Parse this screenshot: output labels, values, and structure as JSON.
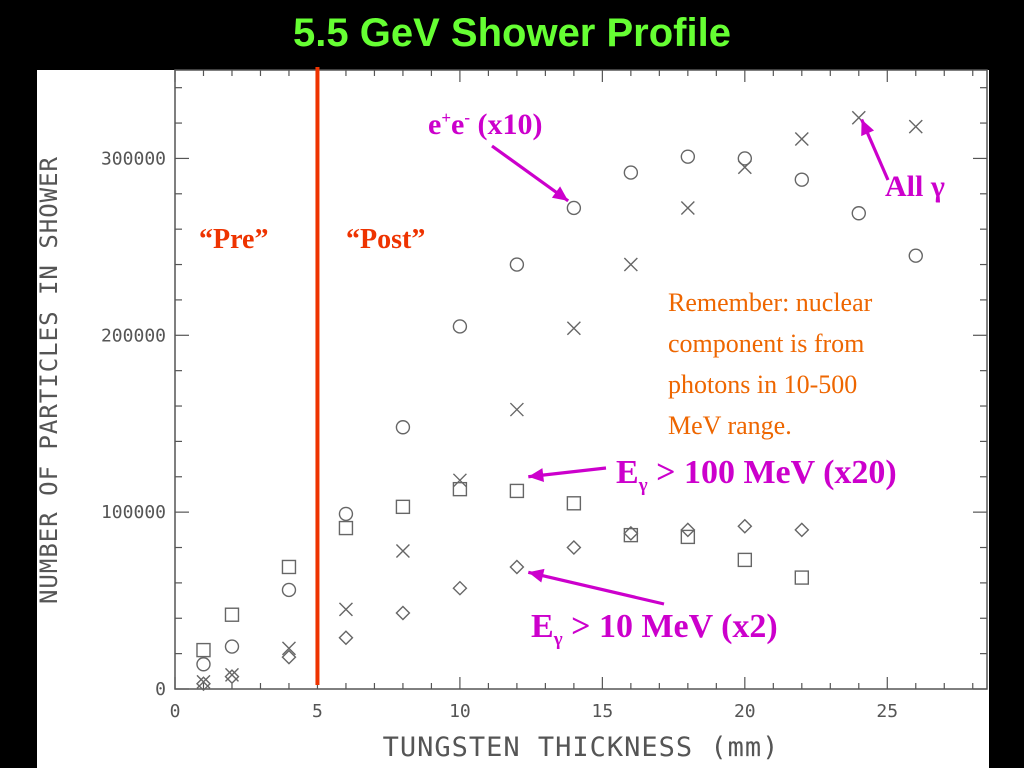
{
  "title": "5.5 GeV Shower Profile",
  "chart_data": {
    "type": "scatter",
    "xlabel": "TUNGSTEN THICKNESS (mm)",
    "ylabel": "NUMBER OF PARTICLES IN SHOWER",
    "xlim": [
      0,
      28.5
    ],
    "ylim": [
      0,
      350000
    ],
    "x_ticks": [
      0,
      5,
      10,
      15,
      20,
      25
    ],
    "y_ticks": [
      0,
      100000,
      200000,
      300000
    ],
    "x_tick_labels": [
      "0",
      "5",
      "10",
      "15",
      "20",
      "25"
    ],
    "y_tick_labels": [
      "0",
      "100000",
      "200000",
      "300000"
    ],
    "grid": false,
    "series": [
      {
        "marker": "circle",
        "label": "e⁺e⁻ (x10)",
        "color": "#666666",
        "x": [
          1,
          2,
          4,
          6,
          8,
          10,
          12,
          14,
          16,
          18,
          20,
          22,
          24,
          26
        ],
        "y": [
          14000,
          24000,
          56000,
          99000,
          148000,
          205000,
          240000,
          272000,
          292000,
          301000,
          300000,
          288000,
          269000,
          245000
        ]
      },
      {
        "marker": "x",
        "label": "All γ",
        "color": "#666666",
        "x": [
          1,
          2,
          4,
          6,
          8,
          10,
          12,
          14,
          16,
          18,
          20,
          22,
          24,
          26
        ],
        "y": [
          4000,
          8000,
          23000,
          45000,
          78000,
          118000,
          158000,
          204000,
          240000,
          272000,
          295000,
          311000,
          323000,
          318000
        ]
      },
      {
        "marker": "square",
        "label": "Eγ > 100 MeV (x20)",
        "color": "#666666",
        "x": [
          1,
          2,
          4,
          6,
          8,
          10,
          12,
          14,
          16,
          18,
          20,
          22
        ],
        "y": [
          22000,
          42000,
          69000,
          91000,
          103000,
          113000,
          112000,
          105000,
          87000,
          86000,
          73000,
          63000
        ]
      },
      {
        "marker": "diamond",
        "label": "Eγ > 10 MeV (x2)",
        "color": "#666666",
        "x": [
          1,
          2,
          4,
          6,
          8,
          10,
          12,
          14,
          16,
          18,
          20,
          22
        ],
        "y": [
          3000,
          7000,
          18000,
          29000,
          43000,
          57000,
          69000,
          80000,
          88000,
          90000,
          92000,
          90000
        ]
      }
    ],
    "vertical_line": {
      "x": 5,
      "color": "#ee3300"
    },
    "region_labels": {
      "pre": "“Pre”",
      "post": "“Post”"
    },
    "annotations": {
      "ee": {
        "base": "e",
        "sup1": "+",
        "mid": "e",
        "sup2": "-",
        "rest": " (x10)",
        "target": [
          13.8,
          276000
        ]
      },
      "all_gamma": {
        "text": "All γ",
        "target": [
          24.1,
          322000
        ]
      },
      "eg100": {
        "base": "E",
        "sub": "γ",
        "rest": " > 100 MeV (x20)",
        "target": [
          12.4,
          120000
        ]
      },
      "eg10": {
        "base": "E",
        "sub": "γ",
        "rest": " > 10 MeV (x2)",
        "target": [
          12.4,
          66000
        ]
      },
      "note": [
        "Remember: nuclear",
        "component is from",
        "photons in 10-500",
        "MeV range."
      ]
    },
    "colors": {
      "annotation": "#cc00cc",
      "region": "#ee3300",
      "note": "#ee6600",
      "markers": "#666666"
    }
  }
}
